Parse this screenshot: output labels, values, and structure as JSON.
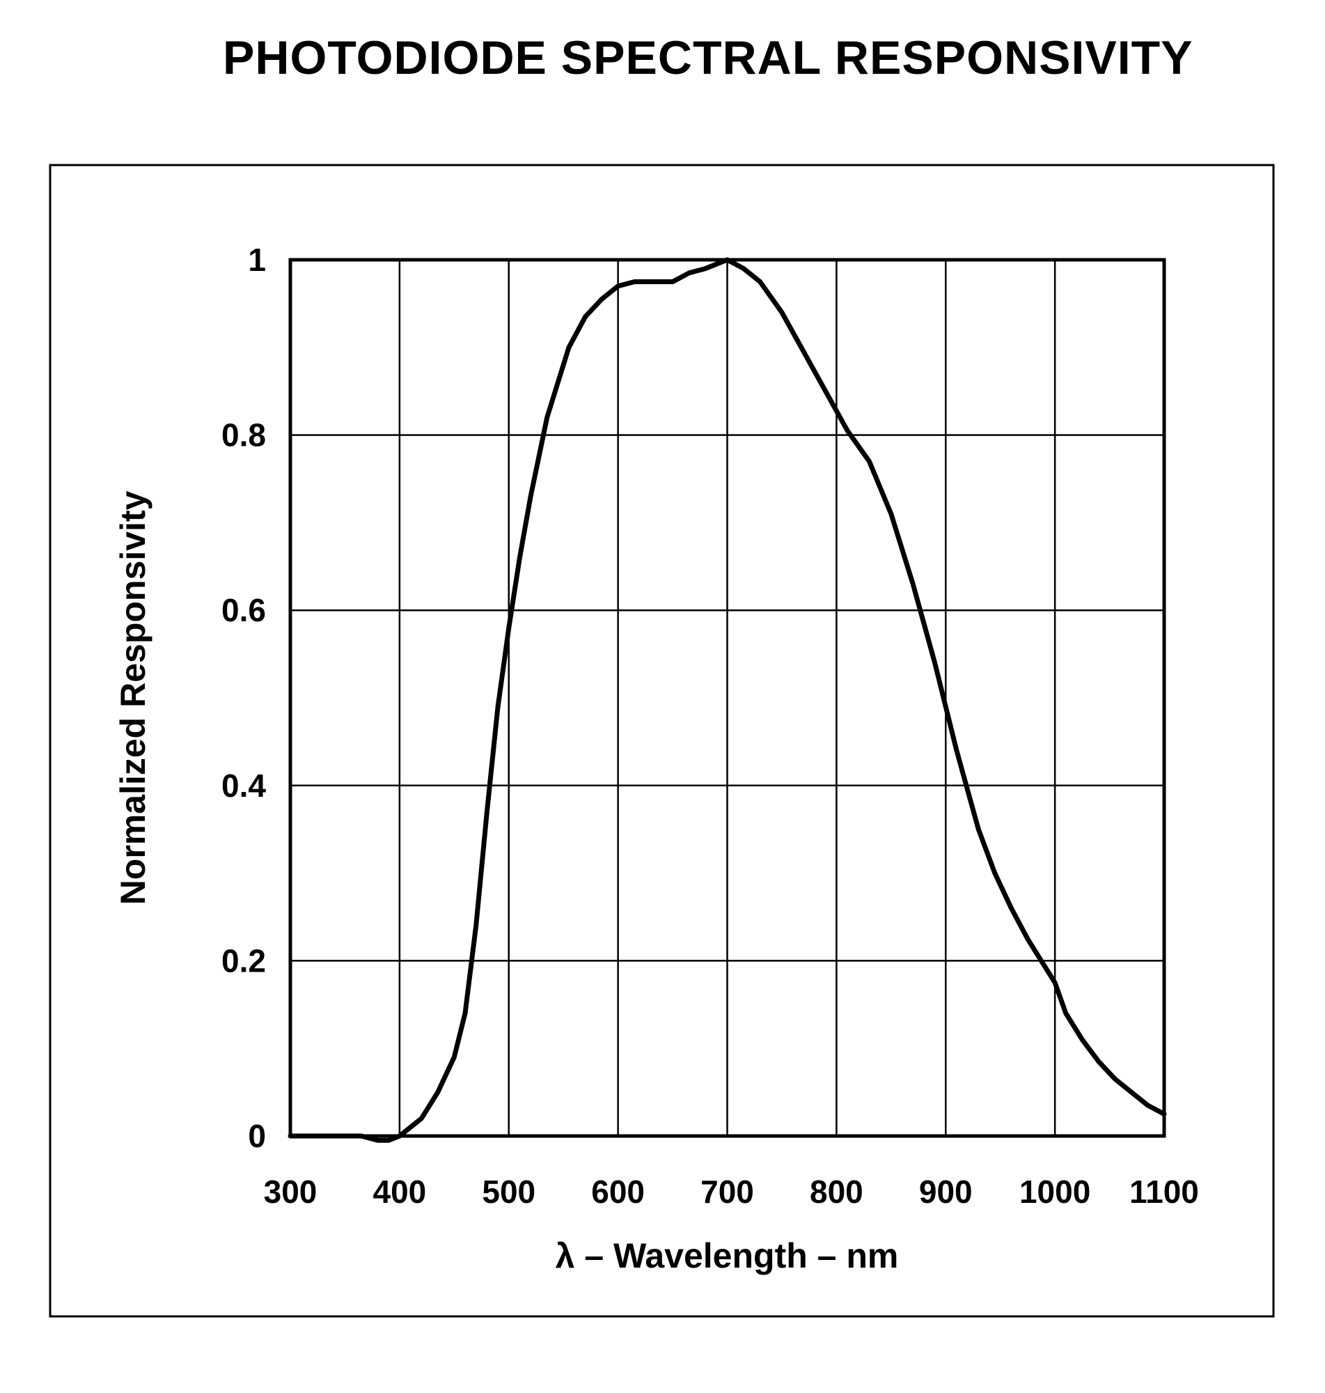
{
  "chart_data": {
    "type": "line",
    "title": "PHOTODIODE SPECTRAL RESPONSIVITY",
    "xlabel": "λ – Wavelength – nm",
    "ylabel": "Normalized Responsivity",
    "xlim": [
      300,
      1100
    ],
    "ylim": [
      0,
      1
    ],
    "xticks": [
      "300",
      "400",
      "500",
      "600",
      "700",
      "800",
      "900",
      "1000",
      "1100"
    ],
    "yticks": [
      "0",
      "0.2",
      "0.4",
      "0.6",
      "0.8",
      "1"
    ],
    "grid": true,
    "legend": "none",
    "series": [
      {
        "color": "#000000",
        "x": [
          300,
          320,
          340,
          360,
          365,
          380,
          390,
          400,
          410,
          420,
          435,
          450,
          460,
          470,
          480,
          490,
          500,
          510,
          520,
          535,
          545,
          555,
          570,
          585,
          600,
          615,
          630,
          650,
          665,
          680,
          700,
          715,
          730,
          750,
          770,
          790,
          810,
          830,
          850,
          870,
          890,
          910,
          930,
          945,
          960,
          975,
          990,
          1000,
          1010,
          1025,
          1040,
          1055,
          1070,
          1085,
          1100
        ],
        "y": [
          0.0,
          0.0,
          0.0,
          0.0,
          0.0,
          -0.005,
          -0.005,
          0.0,
          0.01,
          0.02,
          0.05,
          0.09,
          0.14,
          0.24,
          0.37,
          0.49,
          0.58,
          0.66,
          0.73,
          0.82,
          0.86,
          0.9,
          0.935,
          0.955,
          0.97,
          0.975,
          0.975,
          0.975,
          0.985,
          0.99,
          1.0,
          0.99,
          0.975,
          0.94,
          0.895,
          0.85,
          0.805,
          0.77,
          0.71,
          0.63,
          0.54,
          0.44,
          0.35,
          0.3,
          0.26,
          0.225,
          0.195,
          0.175,
          0.14,
          0.11,
          0.085,
          0.065,
          0.05,
          0.035,
          0.025
        ]
      }
    ]
  }
}
